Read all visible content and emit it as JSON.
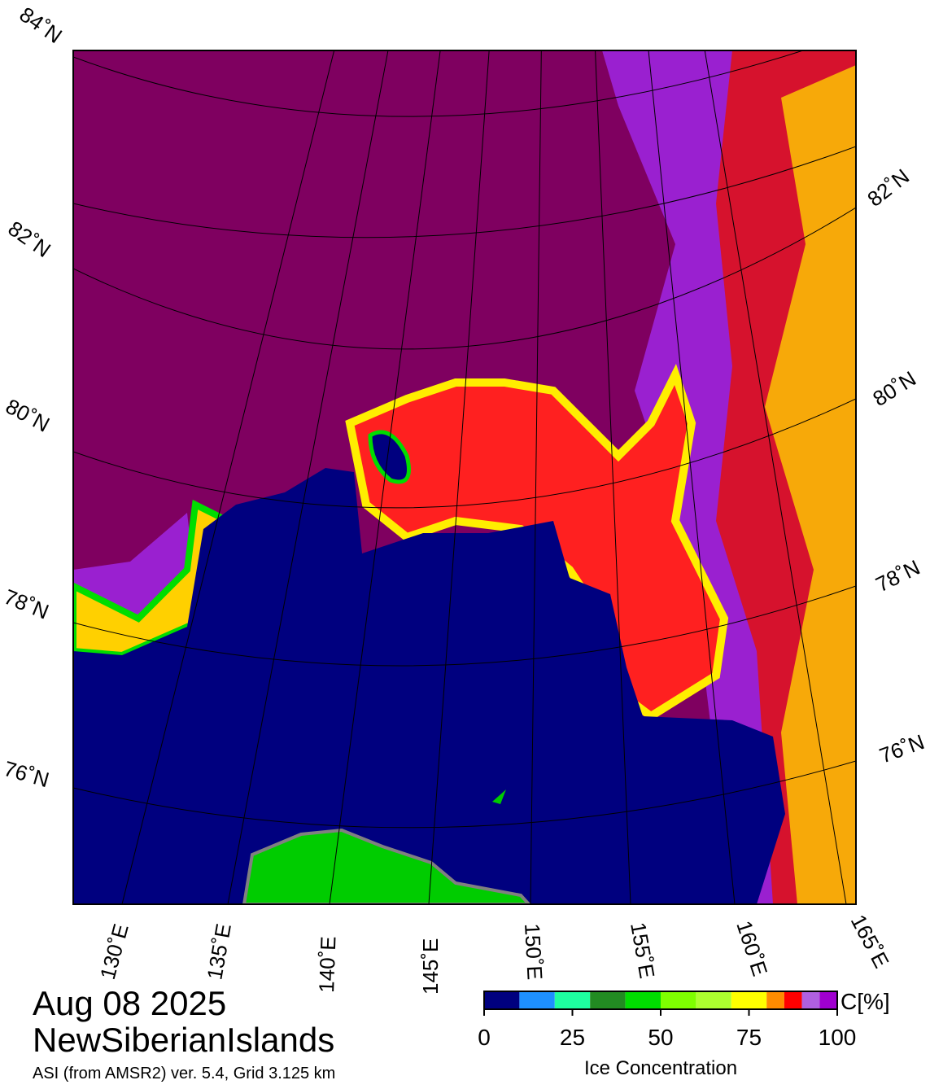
{
  "header": {
    "date": "Aug 08 2025",
    "region": "NewSiberianIslands",
    "source": "ASI (from AMSR2) ver. 5.4,  Grid 3.125 km"
  },
  "latitude_labels": {
    "left": [
      "84˚N",
      "82˚N",
      "80˚N",
      "78˚N",
      "76˚N"
    ],
    "right": [
      "82˚N",
      "80˚N",
      "78˚N",
      "76˚N"
    ]
  },
  "longitude_labels": [
    "130˚E",
    "135˚E",
    "140˚E",
    "145˚E",
    "150˚E",
    "155˚E",
    "160˚E",
    "165˚E"
  ],
  "colorbar": {
    "unit": "C[%]",
    "label": "Ice Concentration",
    "bounds": [
      0,
      10,
      20,
      30,
      40,
      50,
      60,
      70,
      80,
      85,
      90,
      95,
      100
    ],
    "colors": [
      "#00007f",
      "#1e90ff",
      "#1effa0",
      "#228b22",
      "#00dd00",
      "#7fff00",
      "#adff2f",
      "#ffff00",
      "#ff8c00",
      "#ff0000",
      "#b060e0",
      "#a000d0"
    ],
    "ticks": [
      0,
      25,
      50,
      75,
      100
    ],
    "range": [
      0,
      100
    ]
  }
}
